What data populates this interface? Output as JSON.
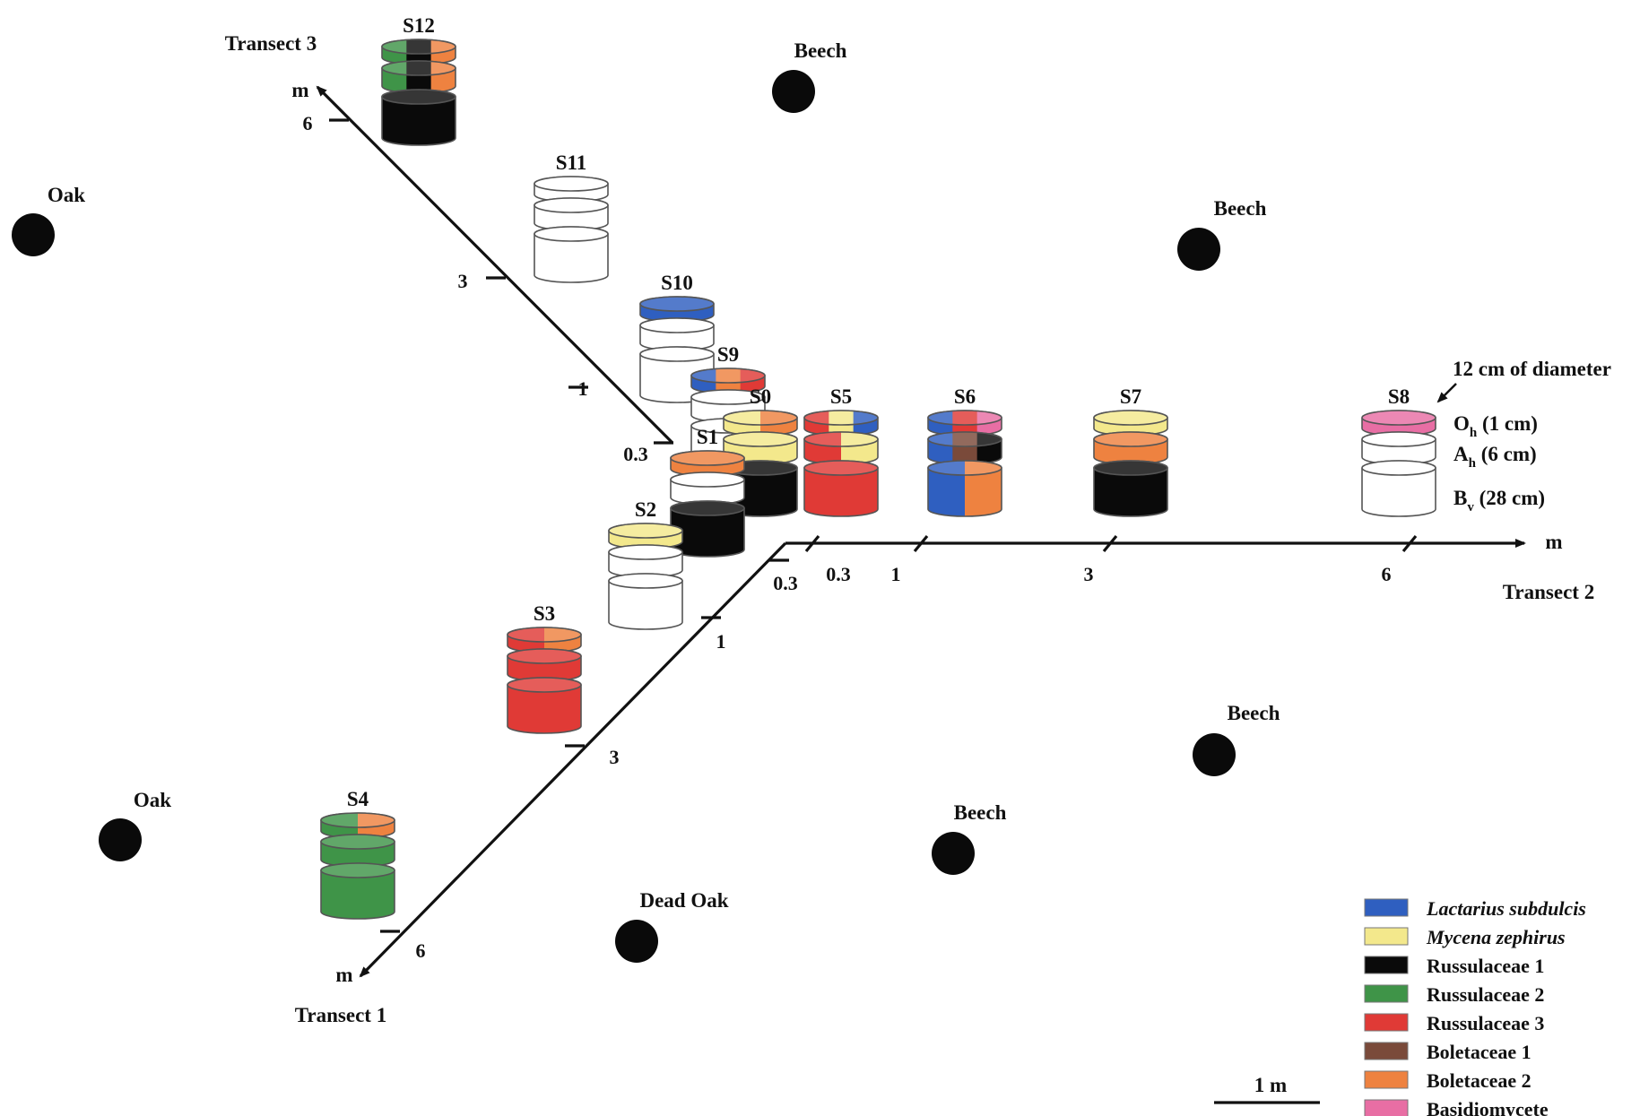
{
  "colors": {
    "Lactarius subdulcis": "#2f5fc0",
    "Mycena zephirus": "#f3e88c",
    "Russulaceae 1": "#0a0a0a",
    "Russulaceae 2": "#3f9448",
    "Russulaceae 3": "#e03a36",
    "Boletaceae 1": "#7a4a3a",
    "Boletaceae 2": "#ee8240",
    "Basidiomycete": "#e86ea4",
    "empty": "#ffffff"
  },
  "trees": [
    {
      "label": "Beech"
    },
    {
      "label": "Beech"
    },
    {
      "label": "Beech"
    },
    {
      "label": "Beech"
    },
    {
      "label": "Oak"
    },
    {
      "label": "Oak"
    },
    {
      "label": "Dead Oak"
    }
  ],
  "transects": {
    "t1": {
      "label": "Transect 1",
      "unit": "m",
      "ticks": [
        "0.3",
        "1",
        "3",
        "6"
      ]
    },
    "t2": {
      "label": "Transect 2",
      "unit": "m",
      "ticks": [
        "0.3",
        "1",
        "3",
        "6"
      ]
    },
    "t3": {
      "label": "Transect 3",
      "unit": "m",
      "ticks": [
        "0.3",
        "1",
        "3",
        "6"
      ]
    }
  },
  "samples": [
    {
      "id": "S12",
      "layers": [
        [
          "Russulaceae 2",
          "Russulaceae 1",
          "Boletaceae 2"
        ],
        [
          "Russulaceae 2",
          "Russulaceae 1",
          "Boletaceae 2"
        ],
        [
          "Russulaceae 1"
        ]
      ]
    },
    {
      "id": "S11",
      "layers": [
        [
          "empty"
        ],
        [
          "empty"
        ],
        [
          "empty"
        ]
      ]
    },
    {
      "id": "S10",
      "layers": [
        [
          "Lactarius subdulcis"
        ],
        [
          "empty"
        ],
        [
          "empty"
        ]
      ]
    },
    {
      "id": "S9",
      "layers": [
        [
          "Lactarius subdulcis",
          "Boletaceae 2",
          "Russulaceae 3"
        ],
        [
          "empty"
        ],
        [
          "empty"
        ]
      ]
    },
    {
      "id": "S0",
      "layers": [
        [
          "Mycena zephirus",
          "Boletaceae 2"
        ],
        [
          "Mycena zephirus"
        ],
        [
          "Russulaceae 1"
        ]
      ]
    },
    {
      "id": "S5",
      "layers": [
        [
          "Russulaceae 3",
          "Mycena zephirus",
          "Lactarius subdulcis"
        ],
        [
          "Russulaceae 3",
          "Mycena zephirus"
        ],
        [
          "Russulaceae 3"
        ]
      ]
    },
    {
      "id": "S6",
      "layers": [
        [
          "Lactarius subdulcis",
          "Russulaceae 3",
          "Basidiomycete"
        ],
        [
          "Lactarius subdulcis",
          "Boletaceae 1",
          "Russulaceae 1"
        ],
        [
          "Lactarius subdulcis",
          "Boletaceae 2"
        ]
      ]
    },
    {
      "id": "S7",
      "layers": [
        [
          "Mycena zephirus"
        ],
        [
          "Boletaceae 2"
        ],
        [
          "Russulaceae 1"
        ]
      ]
    },
    {
      "id": "S8",
      "layers": [
        [
          "Basidiomycete"
        ],
        [
          "empty"
        ],
        [
          "empty"
        ]
      ]
    },
    {
      "id": "S1",
      "layers": [
        [
          "Boletaceae 2"
        ],
        [
          "empty"
        ],
        [
          "Russulaceae 1"
        ]
      ]
    },
    {
      "id": "S2",
      "layers": [
        [
          "Mycena zephirus"
        ],
        [
          "empty"
        ],
        [
          "empty"
        ]
      ]
    },
    {
      "id": "S3",
      "layers": [
        [
          "Russulaceae 3",
          "Boletaceae 2"
        ],
        [
          "Russulaceae 3"
        ],
        [
          "Russulaceae 3"
        ]
      ]
    },
    {
      "id": "S4",
      "layers": [
        [
          "Russulaceae 2",
          "Boletaceae 2"
        ],
        [
          "Russulaceae 2"
        ],
        [
          "Russulaceae 2"
        ]
      ]
    }
  ],
  "annotation": {
    "diameter": "12 cm of diameter",
    "layers": [
      {
        "main": "O",
        "sub": "h",
        "rest": " (1 cm)"
      },
      {
        "main": "A",
        "sub": "h",
        "rest": " (6 cm)"
      },
      {
        "main": "B",
        "sub": "v",
        "rest": " (28 cm)"
      }
    ]
  },
  "legend": [
    {
      "label": "Lactarius subdulcis",
      "italic": true
    },
    {
      "label": "Mycena zephirus",
      "italic": true
    },
    {
      "label": "Russulaceae 1",
      "italic": false
    },
    {
      "label": "Russulaceae 2",
      "italic": false
    },
    {
      "label": "Russulaceae 3",
      "italic": false
    },
    {
      "label": "Boletaceae 1",
      "italic": false
    },
    {
      "label": "Boletaceae 2",
      "italic": false
    },
    {
      "label": "Basidiomycete",
      "italic": false
    }
  ],
  "scale_bar": {
    "label": "1 m"
  }
}
